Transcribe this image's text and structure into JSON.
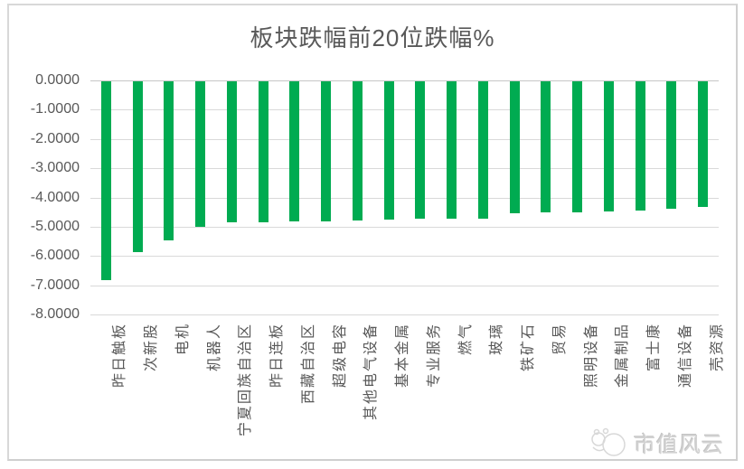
{
  "title": "板块跌幅前20位跌幅%",
  "colors": {
    "bar": "#00AB51",
    "gridline": "#D9D9D9",
    "zero_line": "#C6C6C6",
    "axis_text": "#595959",
    "title_text": "#595959",
    "frame_border": "#D8D8D8",
    "watermark_text": "#D2D2D2"
  },
  "watermark": {
    "text": "市值风云",
    "icon": "cloud-logo-icon"
  },
  "chart_data": {
    "type": "bar",
    "title": "板块跌幅前20位跌幅%",
    "categories": [
      "昨日触板",
      "次新股",
      "电机",
      "机器人",
      "宁夏回族自治区",
      "昨日连板",
      "西藏自治区",
      "超级电容",
      "其他电气设备",
      "基本金属",
      "专业服务",
      "燃气",
      "玻璃",
      "铁矿石",
      "贸易",
      "照明设备",
      "金属制品",
      "富士康",
      "通信设备",
      "壳资源"
    ],
    "values": [
      -6.79,
      -5.85,
      -5.45,
      -4.96,
      -4.83,
      -4.82,
      -4.8,
      -4.79,
      -4.77,
      -4.74,
      -4.71,
      -4.7,
      -4.68,
      -4.5,
      -4.49,
      -4.48,
      -4.46,
      -4.43,
      -4.35,
      -4.3
    ],
    "xlabel": "",
    "ylabel": "",
    "ylim": [
      -8,
      0
    ],
    "y_tick_labels": [
      "0.0000",
      "-1.0000",
      "-2.0000",
      "-3.0000",
      "-4.0000",
      "-5.0000",
      "-6.0000",
      "-7.0000",
      "-8.0000"
    ],
    "grid": true,
    "legend": false,
    "bar_color": "#00AB51"
  }
}
